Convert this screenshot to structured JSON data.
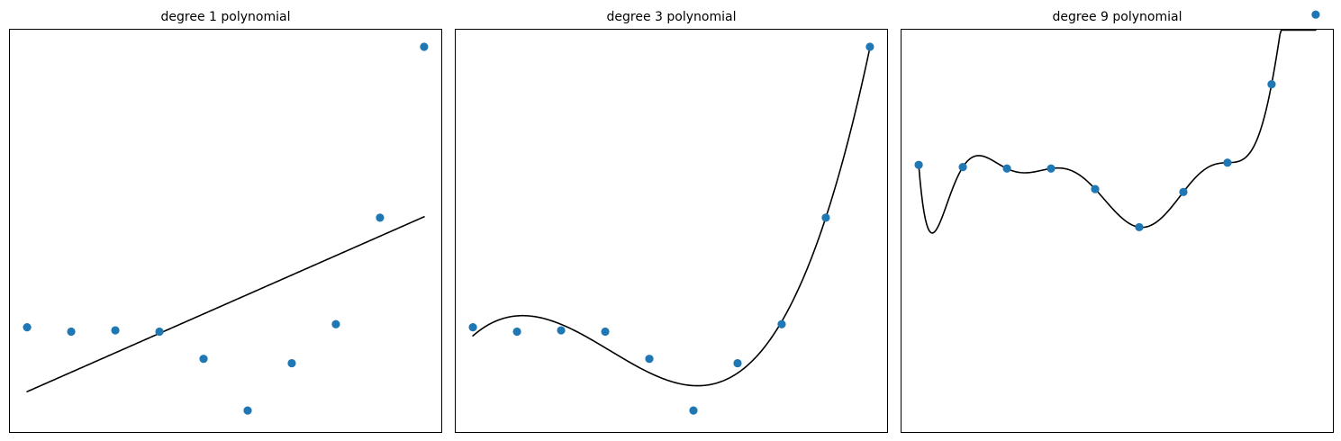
{
  "chart_data": [
    {
      "type": "scatter",
      "title": "degree 1 polynomial",
      "xlabel": "",
      "ylabel": "",
      "xticks": "hidden",
      "yticks": "hidden",
      "grid": false,
      "xlim": [
        -0.4,
        9.4
      ],
      "ylim": [
        -1.2,
        8.0
      ],
      "points_color": "#1f77b4",
      "line_color": "#000000",
      "x": [
        0,
        1,
        2,
        3,
        4,
        5,
        6,
        7,
        8,
        9
      ],
      "y": [
        1.2,
        1.1,
        1.13,
        1.1,
        0.48,
        -0.7,
        0.38,
        1.27,
        3.7,
        7.6
      ],
      "fit_degree": 1
    },
    {
      "type": "scatter",
      "title": "degree 3 polynomial",
      "xlabel": "",
      "ylabel": "",
      "xticks": "hidden",
      "yticks": "hidden",
      "grid": false,
      "xlim": [
        -0.4,
        9.4
      ],
      "ylim": [
        -1.2,
        8.0
      ],
      "points_color": "#1f77b4",
      "line_color": "#000000",
      "x": [
        0,
        1,
        2,
        3,
        4,
        5,
        6,
        7,
        8,
        9
      ],
      "y": [
        1.2,
        1.1,
        1.13,
        1.1,
        0.48,
        -0.7,
        0.38,
        1.27,
        3.7,
        7.6
      ],
      "fit_degree": 3
    },
    {
      "type": "scatter",
      "title": "degree 9 polynomial",
      "xlabel": "",
      "ylabel": "",
      "xticks": "hidden",
      "yticks": "hidden",
      "grid": false,
      "xlim": [
        -0.4,
        9.4
      ],
      "ylim": [
        -3.0,
        2.5
      ],
      "points_color": "#1f77b4",
      "line_color": "#000000",
      "x": [
        0,
        1,
        2,
        3,
        4,
        5,
        6,
        7,
        8,
        9
      ],
      "y": [
        0.65,
        0.62,
        0.6,
        0.6,
        0.32,
        -0.2,
        0.28,
        0.68,
        1.75,
        2.7
      ],
      "fit_degree": 9
    }
  ]
}
